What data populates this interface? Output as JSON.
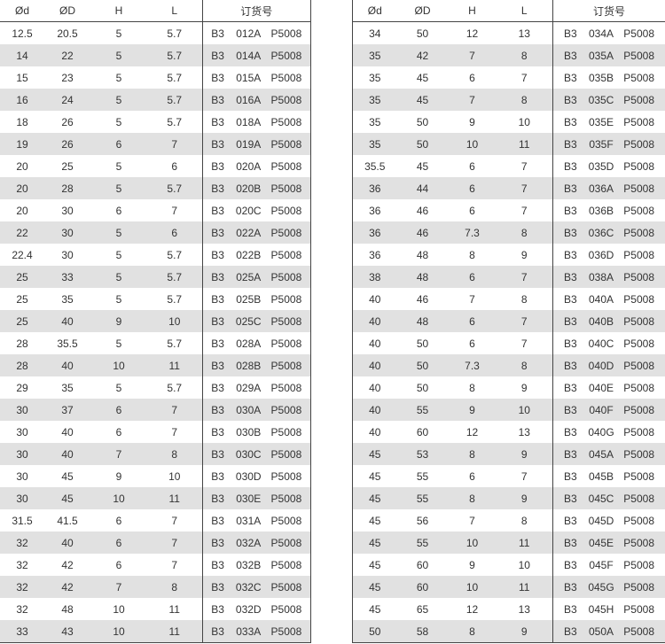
{
  "headers": [
    "Ød",
    "ØD",
    "H",
    "L",
    "订货号"
  ],
  "left_rows": [
    [
      "12.5",
      "20.5",
      "5",
      "5.7",
      [
        "B3",
        "012A",
        "P5008"
      ]
    ],
    [
      "14",
      "22",
      "5",
      "5.7",
      [
        "B3",
        "014A",
        "P5008"
      ]
    ],
    [
      "15",
      "23",
      "5",
      "5.7",
      [
        "B3",
        "015A",
        "P5008"
      ]
    ],
    [
      "16",
      "24",
      "5",
      "5.7",
      [
        "B3",
        "016A",
        "P5008"
      ]
    ],
    [
      "18",
      "26",
      "5",
      "5.7",
      [
        "B3",
        "018A",
        "P5008"
      ]
    ],
    [
      "19",
      "26",
      "6",
      "7",
      [
        "B3",
        "019A",
        "P5008"
      ]
    ],
    [
      "20",
      "25",
      "5",
      "6",
      [
        "B3",
        "020A",
        "P5008"
      ]
    ],
    [
      "20",
      "28",
      "5",
      "5.7",
      [
        "B3",
        "020B",
        "P5008"
      ]
    ],
    [
      "20",
      "30",
      "6",
      "7",
      [
        "B3",
        "020C",
        "P5008"
      ]
    ],
    [
      "22",
      "30",
      "5",
      "6",
      [
        "B3",
        "022A",
        "P5008"
      ]
    ],
    [
      "22.4",
      "30",
      "5",
      "5.7",
      [
        "B3",
        "022B",
        "P5008"
      ]
    ],
    [
      "25",
      "33",
      "5",
      "5.7",
      [
        "B3",
        "025A",
        "P5008"
      ]
    ],
    [
      "25",
      "35",
      "5",
      "5.7",
      [
        "B3",
        "025B",
        "P5008"
      ]
    ],
    [
      "25",
      "40",
      "9",
      "10",
      [
        "B3",
        "025C",
        "P5008"
      ]
    ],
    [
      "28",
      "35.5",
      "5",
      "5.7",
      [
        "B3",
        "028A",
        "P5008"
      ]
    ],
    [
      "28",
      "40",
      "10",
      "11",
      [
        "B3",
        "028B",
        "P5008"
      ]
    ],
    [
      "29",
      "35",
      "5",
      "5.7",
      [
        "B3",
        "029A",
        "P5008"
      ]
    ],
    [
      "30",
      "37",
      "6",
      "7",
      [
        "B3",
        "030A",
        "P5008"
      ]
    ],
    [
      "30",
      "40",
      "6",
      "7",
      [
        "B3",
        "030B",
        "P5008"
      ]
    ],
    [
      "30",
      "40",
      "7",
      "8",
      [
        "B3",
        "030C",
        "P5008"
      ]
    ],
    [
      "30",
      "45",
      "9",
      "10",
      [
        "B3",
        "030D",
        "P5008"
      ]
    ],
    [
      "30",
      "45",
      "10",
      "11",
      [
        "B3",
        "030E",
        "P5008"
      ]
    ],
    [
      "31.5",
      "41.5",
      "6",
      "7",
      [
        "B3",
        "031A",
        "P5008"
      ]
    ],
    [
      "32",
      "40",
      "6",
      "7",
      [
        "B3",
        "032A",
        "P5008"
      ]
    ],
    [
      "32",
      "42",
      "6",
      "7",
      [
        "B3",
        "032B",
        "P5008"
      ]
    ],
    [
      "32",
      "42",
      "7",
      "8",
      [
        "B3",
        "032C",
        "P5008"
      ]
    ],
    [
      "32",
      "48",
      "10",
      "11",
      [
        "B3",
        "032D",
        "P5008"
      ]
    ],
    [
      "33",
      "43",
      "10",
      "11",
      [
        "B3",
        "033A",
        "P5008"
      ]
    ]
  ],
  "right_rows": [
    [
      "34",
      "50",
      "12",
      "13",
      [
        "B3",
        "034A",
        "P5008"
      ]
    ],
    [
      "35",
      "42",
      "7",
      "8",
      [
        "B3",
        "035A",
        "P5008"
      ]
    ],
    [
      "35",
      "45",
      "6",
      "7",
      [
        "B3",
        "035B",
        "P5008"
      ]
    ],
    [
      "35",
      "45",
      "7",
      "8",
      [
        "B3",
        "035C",
        "P5008"
      ]
    ],
    [
      "35",
      "50",
      "9",
      "10",
      [
        "B3",
        "035E",
        "P5008"
      ]
    ],
    [
      "35",
      "50",
      "10",
      "11",
      [
        "B3",
        "035F",
        "P5008"
      ]
    ],
    [
      "35.5",
      "45",
      "6",
      "7",
      [
        "B3",
        "035D",
        "P5008"
      ]
    ],
    [
      "36",
      "44",
      "6",
      "7",
      [
        "B3",
        "036A",
        "P5008"
      ]
    ],
    [
      "36",
      "46",
      "6",
      "7",
      [
        "B3",
        "036B",
        "P5008"
      ]
    ],
    [
      "36",
      "46",
      "7.3",
      "8",
      [
        "B3",
        "036C",
        "P5008"
      ]
    ],
    [
      "36",
      "48",
      "8",
      "9",
      [
        "B3",
        "036D",
        "P5008"
      ]
    ],
    [
      "38",
      "48",
      "6",
      "7",
      [
        "B3",
        "038A",
        "P5008"
      ]
    ],
    [
      "40",
      "46",
      "7",
      "8",
      [
        "B3",
        "040A",
        "P5008"
      ]
    ],
    [
      "40",
      "48",
      "6",
      "7",
      [
        "B3",
        "040B",
        "P5008"
      ]
    ],
    [
      "40",
      "50",
      "6",
      "7",
      [
        "B3",
        "040C",
        "P5008"
      ]
    ],
    [
      "40",
      "50",
      "7.3",
      "8",
      [
        "B3",
        "040D",
        "P5008"
      ]
    ],
    [
      "40",
      "50",
      "8",
      "9",
      [
        "B3",
        "040E",
        "P5008"
      ]
    ],
    [
      "40",
      "55",
      "9",
      "10",
      [
        "B3",
        "040F",
        "P5008"
      ]
    ],
    [
      "40",
      "60",
      "12",
      "13",
      [
        "B3",
        "040G",
        "P5008"
      ]
    ],
    [
      "45",
      "53",
      "8",
      "9",
      [
        "B3",
        "045A",
        "P5008"
      ]
    ],
    [
      "45",
      "55",
      "6",
      "7",
      [
        "B3",
        "045B",
        "P5008"
      ]
    ],
    [
      "45",
      "55",
      "8",
      "9",
      [
        "B3",
        "045C",
        "P5008"
      ]
    ],
    [
      "45",
      "56",
      "7",
      "8",
      [
        "B3",
        "045D",
        "P5008"
      ]
    ],
    [
      "45",
      "55",
      "10",
      "11",
      [
        "B3",
        "045E",
        "P5008"
      ]
    ],
    [
      "45",
      "60",
      "9",
      "10",
      [
        "B3",
        "045F",
        "P5008"
      ]
    ],
    [
      "45",
      "60",
      "10",
      "11",
      [
        "B3",
        "045G",
        "P5008"
      ]
    ],
    [
      "45",
      "65",
      "12",
      "13",
      [
        "B3",
        "045H",
        "P5008"
      ]
    ],
    [
      "50",
      "58",
      "8",
      "9",
      [
        "B3",
        "050A",
        "P5008"
      ]
    ]
  ],
  "colors": {
    "alt_row": "#e1e1e1",
    "border": "#444444"
  }
}
